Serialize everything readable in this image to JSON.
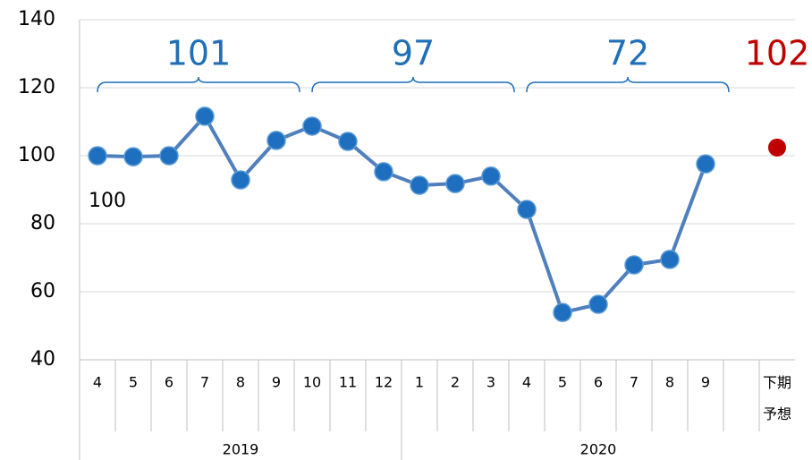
{
  "chart_data": {
    "type": "line",
    "categories": [
      "4",
      "5",
      "6",
      "7",
      "8",
      "9",
      "10",
      "11",
      "12",
      "1",
      "2",
      "3",
      "4",
      "5",
      "6",
      "7",
      "8",
      "9",
      null,
      "下期予想"
    ],
    "years": [
      {
        "label": "2019",
        "first": 0,
        "last": 8
      },
      {
        "label": "2020",
        "first": 9,
        "last": 19
      }
    ],
    "series": [
      {
        "color": "#4f7fbd",
        "marker_color": "#1f6fc0",
        "values": [
          100,
          99.7,
          100,
          111.6,
          92.9,
          104.5,
          108.7,
          104.2,
          95.3,
          91.3,
          91.8,
          94,
          84.2,
          53.9,
          56.3,
          67.9,
          69.5,
          97.6,
          null,
          null
        ],
        "value_labels": [
          "100",
          null,
          null,
          null,
          null,
          null,
          null,
          null,
          null,
          null,
          null,
          null,
          null,
          null,
          null,
          null,
          null,
          null,
          null,
          null
        ]
      },
      {
        "color": "#c00000",
        "marker_color": "#c00000",
        "values": [
          null,
          null,
          null,
          null,
          null,
          null,
          null,
          null,
          null,
          null,
          null,
          null,
          null,
          null,
          null,
          null,
          null,
          null,
          null,
          102.4
        ]
      }
    ],
    "periods": [
      {
        "label": 101,
        "first": 0,
        "last": 5,
        "color": "#1f6fb8"
      },
      {
        "label": 97,
        "first": 6,
        "last": 11,
        "color": "#1f6fb8"
      },
      {
        "label": 72,
        "first": 12,
        "last": 17,
        "color": "#1f6fb8"
      },
      {
        "label": 102,
        "first": 19,
        "last": 19,
        "color": "#c00000"
      }
    ],
    "ylim": [
      40,
      140
    ],
    "yticks": [
      40,
      60,
      80,
      100,
      120,
      140
    ],
    "grid": true
  }
}
